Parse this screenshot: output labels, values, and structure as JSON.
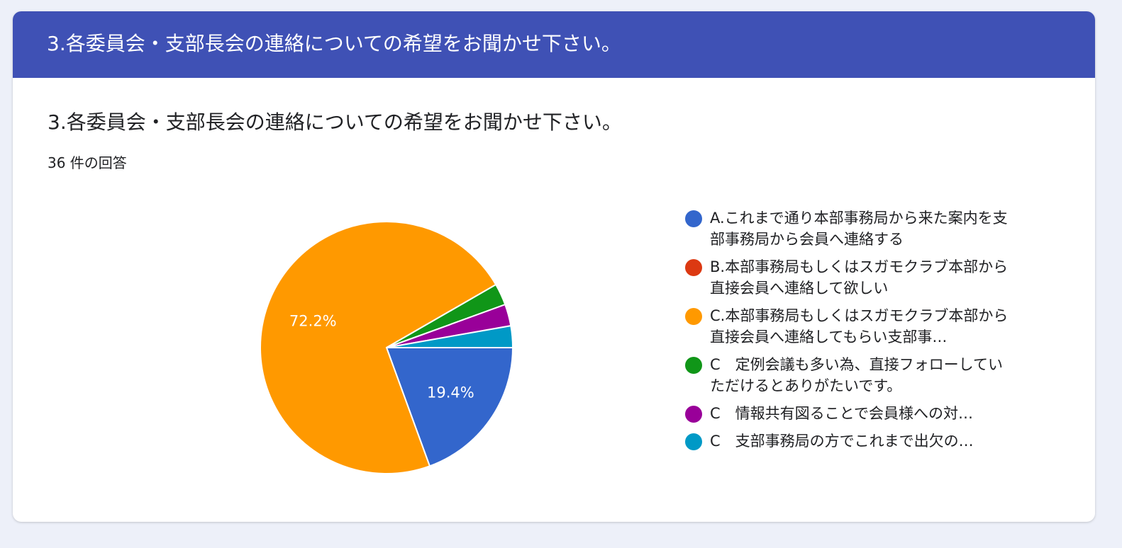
{
  "header": {
    "banner_title": "3.各委員会・支部長会の連絡についての希望をお聞かせ下さい。"
  },
  "question": {
    "title": "3.各委員会・支部長会の連絡についての希望をお聞かせ下さい。",
    "response_count": "36 件の回答"
  },
  "colors": {
    "banner": "#3f51b5",
    "background": "#edf0f9"
  },
  "chart_data": {
    "type": "pie",
    "title": "",
    "total": 36,
    "legend_position": "right",
    "slices": [
      {
        "label": "A.これまで通り本部事務局から来た案内を支部事務局から会員へ連絡する",
        "value": 7,
        "percent_label": "19.4%",
        "color": "#3366cc"
      },
      {
        "label": "B.本部事務局もしくはスガモクラブ本部から直接会員へ連絡して欲しい",
        "value": 0,
        "percent_label": "",
        "color": "#dc3912"
      },
      {
        "label": "C.本部事務局もしくはスガモクラブ本部から直接会員へ連絡してもらい支部事…",
        "value": 26,
        "percent_label": "72.2%",
        "color": "#ff9900"
      },
      {
        "label": "C　定例会議も多い為、直接フォローしていただけるとありがたいです。",
        "value": 1,
        "percent_label": "",
        "color": "#109618"
      },
      {
        "label": "C　情報共有図ることで会員様への対…",
        "value": 1,
        "percent_label": "",
        "color": "#990099"
      },
      {
        "label": "C　支部事務局の方でこれまで出欠の…",
        "value": 1,
        "percent_label": "",
        "color": "#0099c6"
      }
    ]
  }
}
